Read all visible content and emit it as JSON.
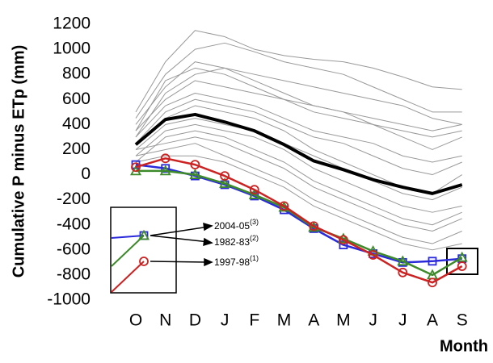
{
  "chart_data": {
    "type": "line",
    "y_label": "Cumulative P minus ETp (mm)",
    "x_label": "Month",
    "categories": [
      "O",
      "N",
      "D",
      "J",
      "F",
      "M",
      "A",
      "M",
      "J",
      "J",
      "A",
      "S"
    ],
    "ylim": [
      -1000,
      1200
    ],
    "yticks": [
      -1000,
      -800,
      -600,
      -400,
      -200,
      0,
      200,
      400,
      600,
      800,
      1000,
      1200
    ],
    "grid": false,
    "series": [
      {
        "color": "#999999",
        "values": [
          500,
          900,
          1150,
          1100,
          1000,
          950,
          920,
          900,
          850,
          780,
          700,
          680
        ]
      },
      {
        "color": "#999999",
        "values": [
          450,
          800,
          1000,
          1050,
          980,
          900,
          850,
          800,
          700,
          600,
          500,
          500
        ]
      },
      {
        "color": "#999999",
        "values": [
          400,
          700,
          900,
          850,
          800,
          750,
          700,
          650,
          600,
          550,
          450,
          400
        ]
      },
      {
        "color": "#999999",
        "values": [
          350,
          750,
          850,
          800,
          700,
          600,
          550,
          500,
          450,
          400,
          350,
          400
        ]
      },
      {
        "color": "#999999",
        "values": [
          300,
          650,
          800,
          850,
          750,
          650,
          550,
          500,
          400,
          300,
          200,
          300
        ]
      },
      {
        "color": "#999999",
        "values": [
          350,
          600,
          750,
          700,
          650,
          600,
          500,
          450,
          400,
          350,
          300,
          350
        ]
      },
      {
        "color": "#999999",
        "values": [
          300,
          550,
          650,
          600,
          550,
          450,
          350,
          300,
          250,
          150,
          100,
          150
        ]
      },
      {
        "color": "#999999",
        "values": [
          250,
          500,
          600,
          550,
          500,
          400,
          300,
          250,
          150,
          50,
          0,
          100
        ]
      },
      {
        "color": "#999999",
        "values": [
          250,
          450,
          550,
          500,
          450,
          350,
          200,
          100,
          0,
          -100,
          -150,
          0
        ]
      },
      {
        "color": "#999999",
        "values": [
          200,
          400,
          450,
          400,
          350,
          250,
          150,
          50,
          -50,
          -150,
          -200,
          -100
        ]
      },
      {
        "color": "#999999",
        "values": [
          150,
          350,
          400,
          350,
          300,
          200,
          50,
          -50,
          -150,
          -250,
          -300,
          -250
        ]
      },
      {
        "color": "#999999",
        "values": [
          100,
          300,
          350,
          300,
          200,
          100,
          -50,
          -150,
          -250,
          -350,
          -400,
          -300
        ]
      },
      {
        "color": "#999999",
        "values": [
          200,
          250,
          300,
          250,
          150,
          50,
          -100,
          -200,
          -300,
          -400,
          -450,
          -350
        ]
      },
      {
        "color": "#999999",
        "values": [
          150,
          200,
          250,
          150,
          50,
          -50,
          -200,
          -300,
          -400,
          -500,
          -550,
          -450
        ]
      },
      {
        "color": "#999999",
        "values": [
          100,
          150,
          150,
          100,
          0,
          -100,
          -250,
          -350,
          -450,
          -550,
          -600,
          -550
        ]
      },
      {
        "color": "#000000",
        "width": 4,
        "values": [
          240,
          440,
          480,
          420,
          350,
          240,
          110,
          40,
          -40,
          -100,
          -150,
          -80
        ]
      },
      {
        "name": "2004-05",
        "note": "(3)",
        "color": "#2a2adb",
        "marker": "square",
        "values": [
          80,
          50,
          -10,
          -80,
          -170,
          -280,
          -430,
          -560,
          -630,
          -700,
          -690,
          -670
        ]
      },
      {
        "name": "1982-83",
        "note": "(2)",
        "color": "#3d8a2a",
        "marker": "triangle",
        "values": [
          30,
          30,
          0,
          -70,
          -160,
          -260,
          -420,
          -510,
          -610,
          -690,
          -800,
          -660
        ]
      },
      {
        "name": "1997-98",
        "note": "(1)",
        "color": "#cc2222",
        "marker": "circle",
        "values": [
          60,
          130,
          80,
          -10,
          -120,
          -250,
          -410,
          -520,
          -640,
          -780,
          -860,
          -730
        ]
      }
    ]
  }
}
